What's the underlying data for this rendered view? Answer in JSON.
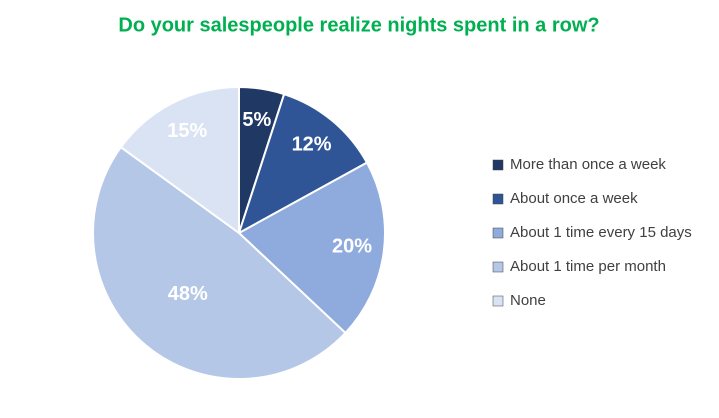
{
  "chart_data": {
    "type": "pie",
    "title": "Do your salespeople realize nights spent in a row?",
    "categories": [
      "More than once a week",
      "About once a week",
      "About 1 time every 15 days",
      "About 1 time per month",
      "None"
    ],
    "values": [
      5,
      12,
      20,
      48,
      15
    ],
    "value_labels": [
      "5%",
      "12%",
      "20%",
      "48%",
      "15%"
    ],
    "colors": [
      "#203864",
      "#2f5597",
      "#8faadc",
      "#b4c7e7",
      "#dae3f3"
    ],
    "legend": "right"
  }
}
